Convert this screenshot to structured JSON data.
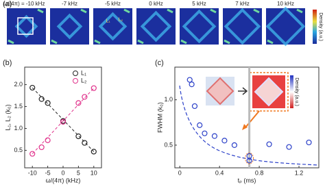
{
  "chart_data": [
    {
      "type": "image",
      "panel_label": "(a)",
      "labels": [
        "ω/(4π) = -10 kHz",
        "-7 kHz",
        "-5 kHz",
        "0 kHz",
        "5 kHz",
        "7 kHz",
        "10 kHz"
      ],
      "annotations": [
        "L₁",
        "L₂"
      ],
      "colorbar_label": "Density (a.u.)"
    },
    {
      "type": "scatter",
      "panel_label": "(b)",
      "x_label": "ω/(4π) (kHz)",
      "y_label": "L₁, L₂ (k₀)",
      "x": [
        -10,
        -7,
        -5,
        0,
        5,
        7,
        10
      ],
      "series": [
        {
          "name": "L₁",
          "color": "#222222",
          "values": [
            1.93,
            1.67,
            1.58,
            1.17,
            0.82,
            0.67,
            0.47
          ]
        },
        {
          "name": "L₂",
          "color": "#e0308a",
          "values": [
            0.42,
            0.57,
            0.73,
            1.15,
            1.58,
            1.72,
            1.92
          ]
        }
      ],
      "xlim": [
        -12.5,
        12.5
      ],
      "xticks": [
        -10,
        -5,
        0,
        5,
        10
      ],
      "ylim": [
        0.1,
        2.4
      ],
      "yticks": [
        0.5,
        {
          "value": 1,
          "label": "1.0"
        },
        1.5,
        {
          "value": 2,
          "label": "2.0"
        }
      ]
    },
    {
      "type": "scatter",
      "panel_label": "(c)",
      "x_label": "tₚ (ms)",
      "y_label": "FWHM (k₀)",
      "x": [
        0.1,
        0.12,
        0.15,
        0.2,
        0.25,
        0.35,
        0.45,
        0.55,
        0.7,
        0.7,
        0.9,
        1.1,
        1.3
      ],
      "series": [
        {
          "name": null,
          "color": "#2a3fc8",
          "values": [
            1.22,
            1.17,
            0.93,
            0.72,
            0.63,
            0.6,
            0.55,
            0.5,
            0.38,
            0.33,
            0.51,
            0.48,
            0.53
          ]
        }
      ],
      "xlim": [
        -0.05,
        1.4
      ],
      "xticks": [
        0,
        0.4,
        0.8,
        1.2
      ],
      "ylim": [
        0.25,
        1.36
      ],
      "yticks": [
        0.5,
        {
          "value": 1,
          "label": "1.0"
        }
      ],
      "inset_label": "Density (a.u.)"
    }
  ]
}
